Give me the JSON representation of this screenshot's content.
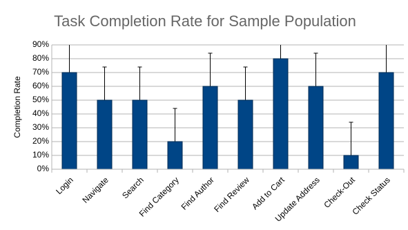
{
  "chart_data": {
    "type": "bar",
    "title": "Task Completion Rate for Sample Population",
    "y_label": "Completion Rate",
    "categories": [
      "Login",
      "Navigate",
      "Search",
      "Find Category",
      "Find Author",
      "Find Review",
      "Add to Cart",
      "Update Address",
      "Check-Out",
      "Check Status"
    ],
    "values": [
      70,
      50,
      50,
      20,
      60,
      50,
      80,
      60,
      10,
      70
    ],
    "errors": [
      24,
      24,
      24,
      24,
      24,
      24,
      24,
      24,
      24,
      24
    ],
    "color": "#004586",
    "ylim": [
      0,
      90
    ],
    "yticks": [
      {
        "value": 0,
        "label": "0%"
      },
      {
        "value": 10,
        "label": "10%"
      },
      {
        "value": 20,
        "label": "20%"
      },
      {
        "value": 30,
        "label": "30%"
      },
      {
        "value": 40,
        "label": "40%"
      },
      {
        "value": 50,
        "label": "50%"
      },
      {
        "value": 60,
        "label": "60%"
      },
      {
        "value": 70,
        "label": "70%"
      },
      {
        "value": 80,
        "label": "80%"
      },
      {
        "value": 90,
        "label": "90%"
      }
    ],
    "grid": true
  }
}
